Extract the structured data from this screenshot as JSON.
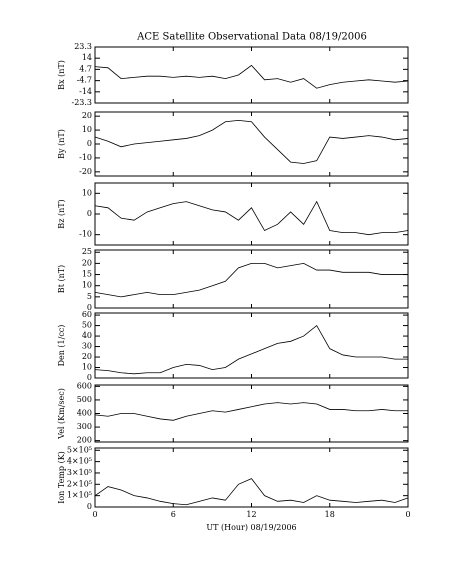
{
  "chart_data": [
    {
      "type": "line",
      "title": "ACE Satellite Observational Data   08/19/2006",
      "ylabel": "Bx (nT)",
      "x": [
        0,
        1,
        2,
        3,
        4,
        5,
        6,
        7,
        8,
        9,
        10,
        11,
        12,
        13,
        14,
        15,
        16,
        17,
        18,
        19,
        20,
        21,
        22,
        23,
        24
      ],
      "series": [
        {
          "color": "#000000",
          "values": [
            7,
            6,
            -3,
            -2,
            -1,
            -1,
            -2,
            -1,
            -2,
            -1,
            -3,
            0,
            8,
            -4,
            -3,
            -6,
            -3,
            -11,
            -8,
            -6,
            -5,
            -4,
            -5,
            -6,
            -5
          ]
        }
      ],
      "xlim": [
        0,
        24
      ],
      "ylim": [
        -23.3,
        23.3
      ],
      "yticks": [
        23.3,
        14.0,
        4.7,
        -4.7,
        -14.0,
        -23.3
      ]
    },
    {
      "type": "line",
      "ylabel": "By (nT)",
      "x": [
        0,
        1,
        2,
        3,
        4,
        5,
        6,
        7,
        8,
        9,
        10,
        11,
        12,
        13,
        14,
        15,
        16,
        17,
        18,
        19,
        20,
        21,
        22,
        23,
        24
      ],
      "series": [
        {
          "color": "#000000",
          "values": [
            5,
            2,
            -2,
            0,
            1,
            2,
            3,
            4,
            6,
            10,
            16,
            17,
            16,
            5,
            -4,
            -13,
            -14,
            -12,
            5,
            4,
            5,
            6,
            5,
            3,
            4
          ]
        }
      ],
      "xlim": [
        0,
        24
      ],
      "ylim": [
        -23,
        23
      ],
      "yticks": [
        20,
        10,
        0,
        -10,
        -20
      ]
    },
    {
      "type": "line",
      "ylabel": "Bz (nT)",
      "x": [
        0,
        1,
        2,
        3,
        4,
        5,
        6,
        7,
        8,
        9,
        10,
        11,
        12,
        13,
        14,
        15,
        16,
        17,
        18,
        19,
        20,
        21,
        22,
        23,
        24
      ],
      "series": [
        {
          "color": "#000000",
          "values": [
            4,
            3,
            -2,
            -3,
            1,
            3,
            5,
            6,
            4,
            2,
            1,
            -3,
            3,
            -8,
            -5,
            1,
            -5,
            6,
            -8,
            -9,
            -9,
            -10,
            -9,
            -9,
            -8
          ]
        }
      ],
      "xlim": [
        0,
        24
      ],
      "ylim": [
        -15,
        15
      ],
      "yticks": [
        10,
        0,
        -10
      ]
    },
    {
      "type": "line",
      "ylabel": "Bt (nT)",
      "x": [
        0,
        1,
        2,
        3,
        4,
        5,
        6,
        7,
        8,
        9,
        10,
        11,
        12,
        13,
        14,
        15,
        16,
        17,
        18,
        19,
        20,
        21,
        22,
        23,
        24
      ],
      "series": [
        {
          "color": "#000000",
          "values": [
            7,
            6,
            5,
            6,
            7,
            6,
            6,
            7,
            8,
            10,
            12,
            18,
            20,
            20,
            18,
            19,
            20,
            17,
            17,
            16,
            16,
            16,
            15,
            15,
            15
          ]
        }
      ],
      "xlim": [
        0,
        24
      ],
      "ylim": [
        0,
        26
      ],
      "yticks": [
        0,
        5,
        10,
        15,
        20,
        25
      ]
    },
    {
      "type": "line",
      "ylabel": "Den (1/cc)",
      "x": [
        0,
        1,
        2,
        3,
        4,
        5,
        6,
        7,
        8,
        9,
        10,
        11,
        12,
        13,
        14,
        15,
        16,
        17,
        18,
        19,
        20,
        21,
        22,
        23,
        24
      ],
      "series": [
        {
          "color": "#000000",
          "values": [
            8,
            7,
            5,
            4,
            5,
            5,
            10,
            13,
            12,
            8,
            10,
            18,
            23,
            28,
            33,
            35,
            40,
            50,
            28,
            22,
            20,
            20,
            20,
            18,
            18
          ]
        }
      ],
      "xlim": [
        0,
        24
      ],
      "ylim": [
        0,
        62
      ],
      "yticks": [
        0,
        10,
        20,
        30,
        40,
        50,
        60
      ]
    },
    {
      "type": "line",
      "ylabel": "Vel (Km/sec)",
      "x": [
        0,
        1,
        2,
        3,
        4,
        5,
        6,
        7,
        8,
        9,
        10,
        11,
        12,
        13,
        14,
        15,
        16,
        17,
        18,
        19,
        20,
        21,
        22,
        23,
        24
      ],
      "series": [
        {
          "color": "#000000",
          "values": [
            390,
            380,
            400,
            400,
            380,
            360,
            350,
            380,
            400,
            420,
            410,
            430,
            450,
            470,
            480,
            470,
            480,
            470,
            430,
            430,
            420,
            420,
            430,
            420,
            420
          ]
        }
      ],
      "xlim": [
        0,
        24
      ],
      "ylim": [
        190,
        610
      ],
      "yticks": [
        200,
        300,
        400,
        500,
        600
      ]
    },
    {
      "type": "line",
      "ylabel": "Ion Temp (K)",
      "xlabel": "UT (Hour)   08/19/2006",
      "x": [
        0,
        1,
        2,
        3,
        4,
        5,
        6,
        7,
        8,
        9,
        10,
        11,
        12,
        13,
        14,
        15,
        16,
        17,
        18,
        19,
        20,
        21,
        22,
        23,
        24
      ],
      "series": [
        {
          "color": "#000000",
          "values": [
            100000,
            180000,
            150000,
            100000,
            80000,
            50000,
            30000,
            20000,
            50000,
            80000,
            60000,
            200000,
            250000,
            100000,
            50000,
            60000,
            40000,
            100000,
            60000,
            50000,
            40000,
            50000,
            60000,
            40000,
            80000
          ]
        }
      ],
      "xlim": [
        0,
        24
      ],
      "ylim": [
        0,
        520000
      ],
      "yticks": [
        0,
        {
          "value": 100000,
          "label": "1×10⁵"
        },
        {
          "value": 200000,
          "label": "2×10⁵"
        },
        {
          "value": 300000,
          "label": "3×10⁵"
        },
        {
          "value": 400000,
          "label": "4×10⁵"
        },
        {
          "value": 500000,
          "label": "5×10⁵"
        }
      ],
      "xticks": [
        0,
        6,
        12,
        18,
        {
          "value": 24,
          "label": "0"
        }
      ]
    }
  ]
}
